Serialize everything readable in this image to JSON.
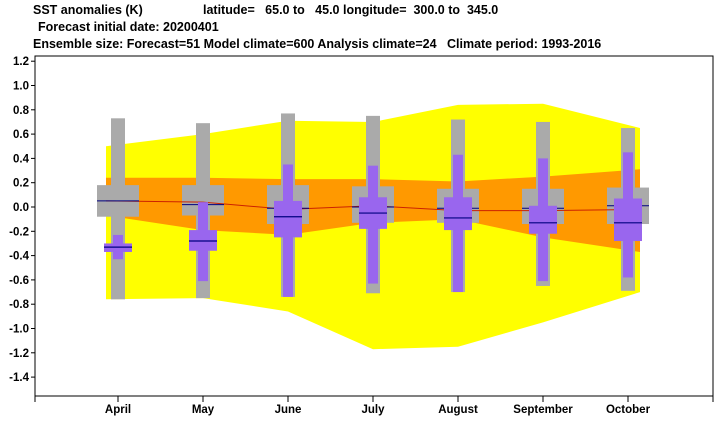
{
  "header": {
    "line1_left": "SST anomalies (K)",
    "line1_right": "latitude=   65.0 to   45.0 longitude=  300.0 to  345.0",
    "line2": "Forecast initial date: 20200401",
    "line3": "Ensemble size: Forecast=51 Model climate=600 Analysis climate=24   Climate period: 1993-2016"
  },
  "chart_data": {
    "type": "box",
    "title": "SST anomalies (K)",
    "categories": [
      "April",
      "May",
      "June",
      "July",
      "August",
      "September",
      "October"
    ],
    "ylim": [
      -1.55,
      1.25
    ],
    "yticks": [
      1.2,
      1.0,
      0.8,
      0.6,
      0.4,
      0.2,
      0.0,
      -0.2,
      -0.4,
      -0.6,
      -0.8,
      -1.0,
      -1.2,
      -1.4
    ],
    "ytick_labels": [
      "1.2",
      "1.0",
      "0.8",
      "0.6",
      "0.4",
      "0.2",
      "0.0",
      "-0.2",
      "-0.4",
      "-0.6",
      "-0.8",
      "-1.0",
      "-1.2",
      "-1.4"
    ],
    "grid": false,
    "colors": {
      "outer_band": "#ffff00",
      "inner_band": "#ff9900",
      "climate_box": "#aaaaaa",
      "forecast_box": "#9966ee",
      "median_line_forecast": "#000080",
      "median_line_climate": "#000080",
      "mean_line": "#cc2200"
    },
    "analysis_bands": {
      "outer_low": [
        -0.76,
        -0.75,
        -0.86,
        -1.17,
        -1.15,
        -0.95,
        -0.7
      ],
      "outer_high": [
        0.5,
        0.6,
        0.71,
        0.7,
        0.84,
        0.85,
        0.65
      ],
      "inner_low": [
        -0.07,
        -0.19,
        -0.23,
        -0.13,
        -0.1,
        -0.25,
        -0.37
      ],
      "inner_high": [
        0.24,
        0.24,
        0.23,
        0.23,
        0.21,
        0.25,
        0.31
      ],
      "mean": [
        0.05,
        0.04,
        -0.02,
        0.01,
        -0.03,
        -0.03,
        -0.02
      ]
    },
    "model_climate": [
      {
        "whisker_low": -0.76,
        "box_low": -0.08,
        "median": 0.05,
        "box_high": 0.18,
        "whisker_high": 0.73
      },
      {
        "whisker_low": -0.75,
        "box_low": -0.07,
        "median": 0.02,
        "box_high": 0.18,
        "whisker_high": 0.69
      },
      {
        "whisker_low": -0.74,
        "box_low": -0.14,
        "median": -0.01,
        "box_high": 0.18,
        "whisker_high": 0.77
      },
      {
        "whisker_low": -0.71,
        "box_low": -0.13,
        "median": 0.0,
        "box_high": 0.17,
        "whisker_high": 0.75
      },
      {
        "whisker_low": -0.7,
        "box_low": -0.13,
        "median": -0.01,
        "box_high": 0.15,
        "whisker_high": 0.72
      },
      {
        "whisker_low": -0.65,
        "box_low": -0.14,
        "median": -0.01,
        "box_high": 0.15,
        "whisker_high": 0.7
      },
      {
        "whisker_low": -0.69,
        "box_low": -0.14,
        "median": 0.01,
        "box_high": 0.16,
        "whisker_high": 0.65
      }
    ],
    "forecast": [
      {
        "whisker_low": -0.43,
        "box_low": -0.37,
        "median": -0.33,
        "box_high": -0.3,
        "whisker_high": -0.23
      },
      {
        "whisker_low": -0.61,
        "box_low": -0.36,
        "median": -0.28,
        "box_high": -0.19,
        "whisker_high": 0.04
      },
      {
        "whisker_low": -0.74,
        "box_low": -0.25,
        "median": -0.08,
        "box_high": 0.05,
        "whisker_high": 0.35
      },
      {
        "whisker_low": -0.63,
        "box_low": -0.18,
        "median": -0.05,
        "box_high": 0.08,
        "whisker_high": 0.34
      },
      {
        "whisker_low": -0.7,
        "box_low": -0.19,
        "median": -0.09,
        "box_high": 0.08,
        "whisker_high": 0.43
      },
      {
        "whisker_low": -0.61,
        "box_low": -0.22,
        "median": -0.13,
        "box_high": 0.01,
        "whisker_high": 0.4
      },
      {
        "whisker_low": -0.58,
        "box_low": -0.28,
        "median": -0.13,
        "box_high": 0.07,
        "whisker_high": 0.45
      }
    ]
  }
}
